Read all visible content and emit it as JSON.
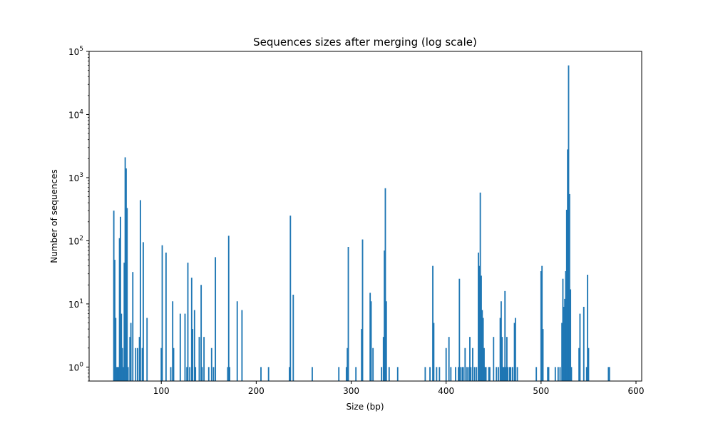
{
  "chart_data": {
    "type": "bar",
    "title": "Sequences sizes after merging (log scale)",
    "xlabel": "Size (bp)",
    "ylabel": "Number of sequences",
    "xlim": [
      24,
      606
    ],
    "ylim": [
      0.6,
      100000
    ],
    "y_scale": "log",
    "x_ticks": [
      100,
      200,
      300,
      400,
      500,
      600
    ],
    "y_ticks": [
      {
        "value": 1,
        "base": "10",
        "exp": "0"
      },
      {
        "value": 10,
        "base": "10",
        "exp": "1"
      },
      {
        "value": 100,
        "base": "10",
        "exp": "2"
      },
      {
        "value": 1000,
        "base": "10",
        "exp": "3"
      },
      {
        "value": 10000,
        "base": "10",
        "exp": "4"
      },
      {
        "value": 100000,
        "base": "10",
        "exp": "5"
      }
    ],
    "grid": false,
    "bar_color": "#1f77b4",
    "bar_width": 1.4,
    "bars": [
      {
        "x": 50,
        "y": 300
      },
      {
        "x": 51,
        "y": 50
      },
      {
        "x": 52,
        "y": 6
      },
      {
        "x": 53,
        "y": 1
      },
      {
        "x": 54,
        "y": 1
      },
      {
        "x": 55,
        "y": 1
      },
      {
        "x": 56,
        "y": 110
      },
      {
        "x": 57,
        "y": 240
      },
      {
        "x": 58,
        "y": 7
      },
      {
        "x": 59,
        "y": 2
      },
      {
        "x": 60,
        "y": 1
      },
      {
        "x": 61,
        "y": 45
      },
      {
        "x": 62,
        "y": 2100
      },
      {
        "x": 63,
        "y": 1400
      },
      {
        "x": 64,
        "y": 330
      },
      {
        "x": 65,
        "y": 1
      },
      {
        "x": 67,
        "y": 3
      },
      {
        "x": 68,
        "y": 5
      },
      {
        "x": 70,
        "y": 32
      },
      {
        "x": 73,
        "y": 2
      },
      {
        "x": 75,
        "y": 2
      },
      {
        "x": 77,
        "y": 3
      },
      {
        "x": 78,
        "y": 440
      },
      {
        "x": 80,
        "y": 2
      },
      {
        "x": 81,
        "y": 95
      },
      {
        "x": 85,
        "y": 6
      },
      {
        "x": 100,
        "y": 2
      },
      {
        "x": 101,
        "y": 85
      },
      {
        "x": 105,
        "y": 65
      },
      {
        "x": 110,
        "y": 1
      },
      {
        "x": 112,
        "y": 11
      },
      {
        "x": 113,
        "y": 2
      },
      {
        "x": 120,
        "y": 7
      },
      {
        "x": 125,
        "y": 7
      },
      {
        "x": 127,
        "y": 1
      },
      {
        "x": 128,
        "y": 45
      },
      {
        "x": 130,
        "y": 1
      },
      {
        "x": 132,
        "y": 26
      },
      {
        "x": 133,
        "y": 4
      },
      {
        "x": 135,
        "y": 8
      },
      {
        "x": 136,
        "y": 1
      },
      {
        "x": 140,
        "y": 3
      },
      {
        "x": 142,
        "y": 20
      },
      {
        "x": 143,
        "y": 1
      },
      {
        "x": 145,
        "y": 3
      },
      {
        "x": 150,
        "y": 1
      },
      {
        "x": 153,
        "y": 2
      },
      {
        "x": 155,
        "y": 1
      },
      {
        "x": 157,
        "y": 55
      },
      {
        "x": 170,
        "y": 1
      },
      {
        "x": 171,
        "y": 120
      },
      {
        "x": 172,
        "y": 1
      },
      {
        "x": 180,
        "y": 11
      },
      {
        "x": 185,
        "y": 8
      },
      {
        "x": 205,
        "y": 1
      },
      {
        "x": 213,
        "y": 1
      },
      {
        "x": 235,
        "y": 1
      },
      {
        "x": 236,
        "y": 250
      },
      {
        "x": 239,
        "y": 14
      },
      {
        "x": 259,
        "y": 1
      },
      {
        "x": 287,
        "y": 1
      },
      {
        "x": 295,
        "y": 1
      },
      {
        "x": 296,
        "y": 2
      },
      {
        "x": 297,
        "y": 80
      },
      {
        "x": 305,
        "y": 1
      },
      {
        "x": 311,
        "y": 4
      },
      {
        "x": 312,
        "y": 105
      },
      {
        "x": 320,
        "y": 15
      },
      {
        "x": 321,
        "y": 11
      },
      {
        "x": 323,
        "y": 2
      },
      {
        "x": 332,
        "y": 1
      },
      {
        "x": 334,
        "y": 3
      },
      {
        "x": 335,
        "y": 70
      },
      {
        "x": 336,
        "y": 680
      },
      {
        "x": 337,
        "y": 11
      },
      {
        "x": 340,
        "y": 1
      },
      {
        "x": 349,
        "y": 1
      },
      {
        "x": 378,
        "y": 1
      },
      {
        "x": 383,
        "y": 1
      },
      {
        "x": 386,
        "y": 40
      },
      {
        "x": 387,
        "y": 5
      },
      {
        "x": 390,
        "y": 1
      },
      {
        "x": 393,
        "y": 1
      },
      {
        "x": 400,
        "y": 2
      },
      {
        "x": 403,
        "y": 3
      },
      {
        "x": 405,
        "y": 1
      },
      {
        "x": 410,
        "y": 1
      },
      {
        "x": 413,
        "y": 1
      },
      {
        "x": 414,
        "y": 25
      },
      {
        "x": 415,
        "y": 1
      },
      {
        "x": 417,
        "y": 1
      },
      {
        "x": 418,
        "y": 1
      },
      {
        "x": 420,
        "y": 2
      },
      {
        "x": 422,
        "y": 1
      },
      {
        "x": 424,
        "y": 1
      },
      {
        "x": 425,
        "y": 3
      },
      {
        "x": 426,
        "y": 1
      },
      {
        "x": 428,
        "y": 2
      },
      {
        "x": 430,
        "y": 1
      },
      {
        "x": 432,
        "y": 1
      },
      {
        "x": 434,
        "y": 65
      },
      {
        "x": 435,
        "y": 40
      },
      {
        "x": 436,
        "y": 580
      },
      {
        "x": 437,
        "y": 28
      },
      {
        "x": 438,
        "y": 8
      },
      {
        "x": 439,
        "y": 6
      },
      {
        "x": 440,
        "y": 2
      },
      {
        "x": 441,
        "y": 1
      },
      {
        "x": 442,
        "y": 1
      },
      {
        "x": 445,
        "y": 1
      },
      {
        "x": 446,
        "y": 1
      },
      {
        "x": 450,
        "y": 3
      },
      {
        "x": 453,
        "y": 1
      },
      {
        "x": 455,
        "y": 1
      },
      {
        "x": 457,
        "y": 6
      },
      {
        "x": 458,
        "y": 11
      },
      {
        "x": 459,
        "y": 3
      },
      {
        "x": 460,
        "y": 1
      },
      {
        "x": 461,
        "y": 1
      },
      {
        "x": 462,
        "y": 16
      },
      {
        "x": 463,
        "y": 1
      },
      {
        "x": 464,
        "y": 3
      },
      {
        "x": 465,
        "y": 1
      },
      {
        "x": 467,
        "y": 1
      },
      {
        "x": 468,
        "y": 1
      },
      {
        "x": 470,
        "y": 1
      },
      {
        "x": 472,
        "y": 5
      },
      {
        "x": 473,
        "y": 6
      },
      {
        "x": 475,
        "y": 1
      },
      {
        "x": 495,
        "y": 1
      },
      {
        "x": 500,
        "y": 33
      },
      {
        "x": 501,
        "y": 40
      },
      {
        "x": 502,
        "y": 4
      },
      {
        "x": 507,
        "y": 1
      },
      {
        "x": 508,
        "y": 1
      },
      {
        "x": 515,
        "y": 1
      },
      {
        "x": 518,
        "y": 1
      },
      {
        "x": 520,
        "y": 1
      },
      {
        "x": 522,
        "y": 5
      },
      {
        "x": 523,
        "y": 25
      },
      {
        "x": 524,
        "y": 9
      },
      {
        "x": 525,
        "y": 12
      },
      {
        "x": 526,
        "y": 33
      },
      {
        "x": 527,
        "y": 310
      },
      {
        "x": 528,
        "y": 2800
      },
      {
        "x": 529,
        "y": 60000
      },
      {
        "x": 530,
        "y": 550
      },
      {
        "x": 531,
        "y": 17
      },
      {
        "x": 532,
        "y": 1
      },
      {
        "x": 540,
        "y": 2
      },
      {
        "x": 541,
        "y": 7
      },
      {
        "x": 545,
        "y": 9
      },
      {
        "x": 548,
        "y": 1
      },
      {
        "x": 549,
        "y": 29
      },
      {
        "x": 550,
        "y": 2
      },
      {
        "x": 571,
        "y": 1
      },
      {
        "x": 572,
        "y": 1
      }
    ]
  }
}
